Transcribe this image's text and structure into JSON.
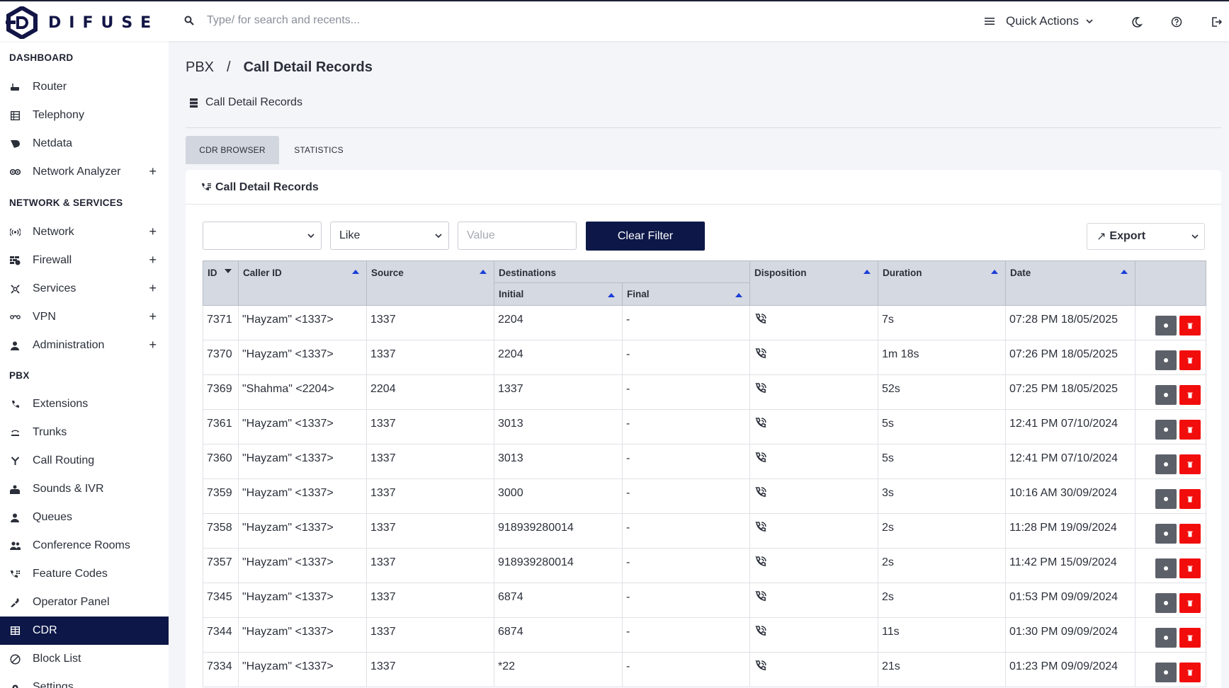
{
  "brand": {
    "name": "DIFUSE"
  },
  "search": {
    "placeholder": "Type/ for search and recents..."
  },
  "header": {
    "quick_actions": "Quick Actions"
  },
  "sidebar": {
    "dashboard_title": "DASHBOARD",
    "dashboard": [
      {
        "label": "Router",
        "icon": "router-icon"
      },
      {
        "label": "Telephony",
        "icon": "grid-icon"
      },
      {
        "label": "Netdata",
        "icon": "netdata-icon"
      },
      {
        "label": "Network Analyzer",
        "icon": "owl-icon",
        "expand": "+"
      }
    ],
    "network_title": "NETWORK & SERVICES",
    "network": [
      {
        "label": "Network",
        "icon": "antenna-icon",
        "expand": "+"
      },
      {
        "label": "Firewall",
        "icon": "firewall-icon",
        "expand": "+"
      },
      {
        "label": "Services",
        "icon": "services-icon",
        "expand": "+"
      },
      {
        "label": "VPN",
        "icon": "vpn-icon",
        "expand": "+"
      },
      {
        "label": "Administration",
        "icon": "user-icon",
        "expand": "+"
      }
    ],
    "pbx_title": "PBX",
    "pbx": [
      {
        "label": "Extensions",
        "icon": "phone-icon"
      },
      {
        "label": "Trunks",
        "icon": "trunk-icon"
      },
      {
        "label": "Call Routing",
        "icon": "routing-icon"
      },
      {
        "label": "Sounds & IVR",
        "icon": "sounds-icon"
      },
      {
        "label": "Queues",
        "icon": "queue-icon"
      },
      {
        "label": "Conference Rooms",
        "icon": "conference-icon"
      },
      {
        "label": "Feature Codes",
        "icon": "feature-codes-icon"
      },
      {
        "label": "Operator Panel",
        "icon": "operator-icon"
      },
      {
        "label": "CDR",
        "icon": "table-icon",
        "active": true
      },
      {
        "label": "Block List",
        "icon": "block-icon"
      },
      {
        "label": "Settings",
        "icon": "gear-icon"
      }
    ]
  },
  "breadcrumb": {
    "root": "PBX",
    "separator": "/",
    "current": "Call Detail Records"
  },
  "page": {
    "subtitle": "Call Detail Records"
  },
  "tabs": [
    {
      "label": "CDR BROWSER",
      "active": true
    },
    {
      "label": "STATISTICS",
      "active": false
    }
  ],
  "card": {
    "title": "Call Detail Records"
  },
  "filter": {
    "field_value": "",
    "operator_value": "Like",
    "value_placeholder": "Value",
    "clear_label": "Clear Filter",
    "export_label": "Export",
    "export_arrow": "↗"
  },
  "table": {
    "headers": {
      "id": "ID",
      "caller_id": "Caller ID",
      "source": "Source",
      "destinations": "Destinations",
      "initial": "Initial",
      "final": "Final",
      "disposition": "Disposition",
      "duration": "Duration",
      "date": "Date"
    },
    "rows": [
      {
        "id": "7371",
        "caller_id": "\"Hayzam\" <1337>",
        "source": "1337",
        "initial": "2204",
        "final": "-",
        "duration": "7s",
        "date": "07:28 PM 18/05/2025"
      },
      {
        "id": "7370",
        "caller_id": "\"Hayzam\" <1337>",
        "source": "1337",
        "initial": "2204",
        "final": "-",
        "duration": "1m 18s",
        "date": "07:26 PM 18/05/2025"
      },
      {
        "id": "7369",
        "caller_id": "\"Shahma\" <2204>",
        "source": "2204",
        "initial": "1337",
        "final": "-",
        "duration": "52s",
        "date": "07:25 PM 18/05/2025"
      },
      {
        "id": "7361",
        "caller_id": "\"Hayzam\" <1337>",
        "source": "1337",
        "initial": "3013",
        "final": "-",
        "duration": "5s",
        "date": "12:41 PM 07/10/2024"
      },
      {
        "id": "7360",
        "caller_id": "\"Hayzam\" <1337>",
        "source": "1337",
        "initial": "3013",
        "final": "-",
        "duration": "5s",
        "date": "12:41 PM 07/10/2024"
      },
      {
        "id": "7359",
        "caller_id": "\"Hayzam\" <1337>",
        "source": "1337",
        "initial": "3000",
        "final": "-",
        "duration": "3s",
        "date": "10:16 AM 30/09/2024"
      },
      {
        "id": "7358",
        "caller_id": "\"Hayzam\" <1337>",
        "source": "1337",
        "initial": "918939280014",
        "final": "-",
        "duration": "2s",
        "date": "11:28 PM 19/09/2024"
      },
      {
        "id": "7357",
        "caller_id": "\"Hayzam\" <1337>",
        "source": "1337",
        "initial": "918939280014",
        "final": "-",
        "duration": "2s",
        "date": "11:42 PM 15/09/2024"
      },
      {
        "id": "7345",
        "caller_id": "\"Hayzam\" <1337>",
        "source": "1337",
        "initial": "6874",
        "final": "-",
        "duration": "2s",
        "date": "01:53 PM 09/09/2024"
      },
      {
        "id": "7344",
        "caller_id": "\"Hayzam\" <1337>",
        "source": "1337",
        "initial": "6874",
        "final": "-",
        "duration": "11s",
        "date": "01:30 PM 09/09/2024"
      },
      {
        "id": "7334",
        "caller_id": "\"Hayzam\" <1337>",
        "source": "1337",
        "initial": "*22",
        "final": "-",
        "duration": "21s",
        "date": "01:23 PM 09/09/2024"
      }
    ]
  },
  "colors": {
    "primary": "#0d1848",
    "danger": "#f20d0d",
    "sort_arrow": "#1b3fd6",
    "header_bg": "#d5d9e1"
  }
}
